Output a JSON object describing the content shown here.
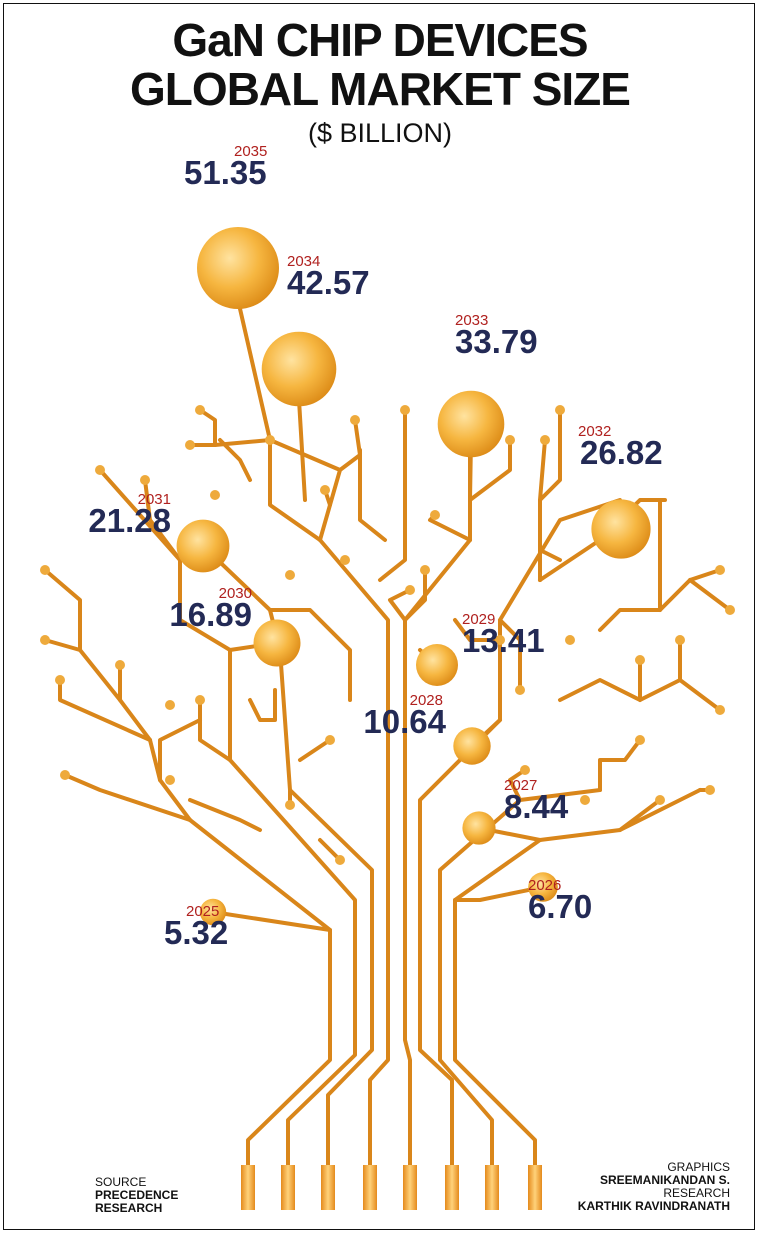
{
  "title_lines": [
    "GaN CHIP DEVICES",
    "GLOBAL MARKET SIZE"
  ],
  "subtitle": "($ BILLION)",
  "chart_data": {
    "type": "bubble",
    "title": "GaN CHIP DEVICES GLOBAL MARKET SIZE",
    "unit": "($ BILLION)",
    "categories": [
      "2025",
      "2026",
      "2027",
      "2028",
      "2029",
      "2030",
      "2031",
      "2032",
      "2033",
      "2034",
      "2035"
    ],
    "values": [
      5.32,
      6.7,
      8.44,
      10.64,
      13.41,
      16.89,
      21.28,
      26.82,
      33.79,
      42.57,
      51.35
    ],
    "value_labels": [
      "5.32",
      "6.70",
      "8.44",
      "10.64",
      "13.41",
      "16.89",
      "21.28",
      "26.82",
      "33.79",
      "42.57",
      "51.35"
    ]
  },
  "credits": {
    "source_label": "SOURCE",
    "source_name_1": "PRECEDENCE",
    "source_name_2": "RESEARCH",
    "graphics_label": "GRAPHICS",
    "graphics_name": "SREEMANIKANDAN S.",
    "research_label": "RESEARCH",
    "research_name": "KARTHIK RAVINDRANATH"
  },
  "colors": {
    "branch": "#d9861a",
    "bubble_light": "#ffd27a",
    "bubble_dark": "#e89a1e",
    "year": "#b0211f",
    "value": "#232a55"
  }
}
